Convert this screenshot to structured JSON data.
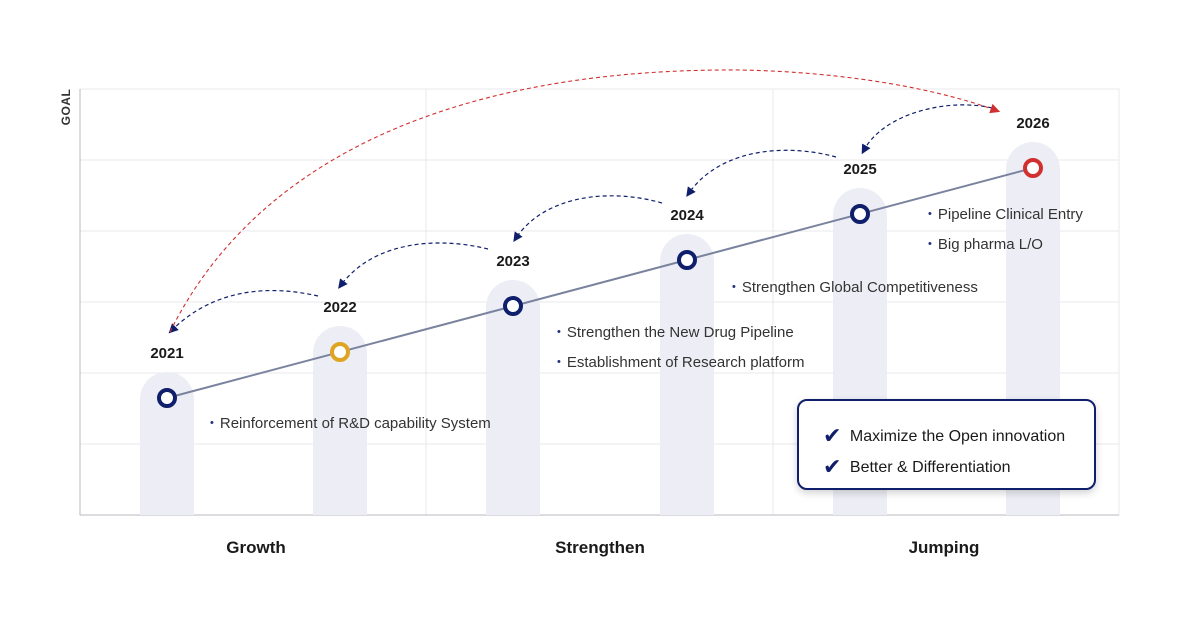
{
  "goal_label": "GOAL",
  "milestones": [
    {
      "year": "2021",
      "notes": [
        "Reinforcement of R&D capability System"
      ],
      "marker_color": "#0f1f6b"
    },
    {
      "year": "2022",
      "notes": [],
      "marker_color": "#e0a520"
    },
    {
      "year": "2023",
      "notes": [
        "Strengthen the New Drug Pipeline",
        "Establishment of Research platform"
      ],
      "marker_color": "#0f1f6b"
    },
    {
      "year": "2024",
      "notes": [
        "Strengthen Global Competitiveness"
      ],
      "marker_color": "#0f1f6b"
    },
    {
      "year": "2025",
      "notes": [
        "Pipeline Clinical Entry",
        "Big pharma L/O"
      ],
      "marker_color": "#0f1f6b"
    },
    {
      "year": "2026",
      "notes": [],
      "marker_color": "#d03030"
    }
  ],
  "phases": [
    "Growth",
    "Strengthen",
    "Jumping"
  ],
  "callout": {
    "items": [
      "Maximize the Open innovation",
      "Better & Differentiation"
    ],
    "check_icon": "checkmark-icon"
  },
  "colors": {
    "navy": "#0f1f6b",
    "pillar": "#edeef5",
    "trend_line": "#7a839e",
    "grid": "#e8e8ec",
    "red_arrow": "#d03030"
  }
}
